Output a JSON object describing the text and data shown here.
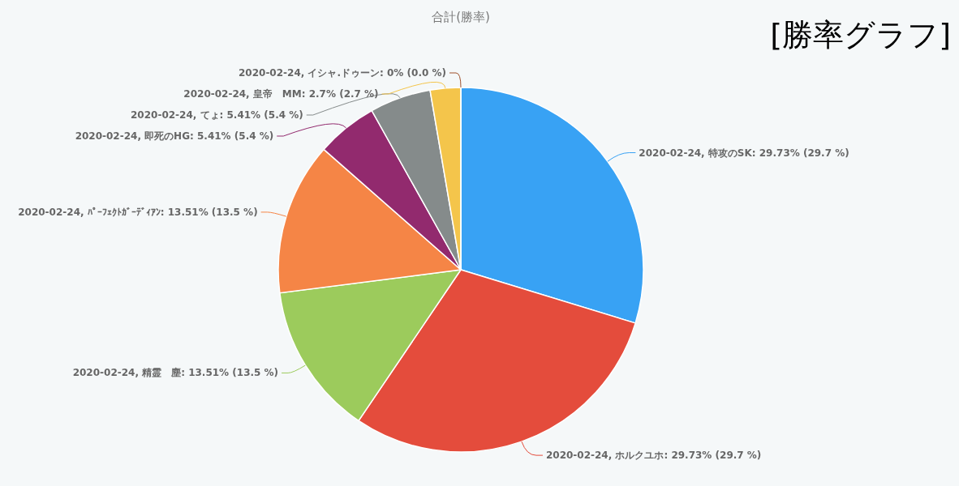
{
  "chart_data": {
    "type": "pie",
    "title": "合計(勝率)",
    "subtitle": "[勝率グラフ]",
    "categories": [
      "2020-02-24, 特攻のSK",
      "2020-02-24, ホルクユホ",
      "2020-02-24, 精霊　塵",
      "2020-02-24, ﾊﾟｰﾌｪｸﾄｶﾞｰﾃﾞｨｱﾝ",
      "2020-02-24, 即死のHG",
      "2020-02-24, てょ",
      "2020-02-24, 皇帝　MM",
      "2020-02-24, イシャ.ドゥーン"
    ],
    "values": [
      29.73,
      29.73,
      13.51,
      13.51,
      5.41,
      5.41,
      2.7,
      0
    ],
    "value_labels": [
      ": 29.73% (29.7 %)",
      ": 29.73% (29.7 %)",
      ": 13.51% (13.5 %)",
      ": 13.51% (13.5 %)",
      ": 5.41% (5.4 %)",
      ": 5.41% (5.4 %)",
      ": 2.7% (2.7 %)",
      ": 0% (0.0 %)"
    ],
    "colors": [
      "#38a2f4",
      "#e44c3c",
      "#9ccb5c",
      "#f58546",
      "#922a6e",
      "#858b8b",
      "#f4c54b",
      "#a0522d"
    ],
    "legend": false
  }
}
